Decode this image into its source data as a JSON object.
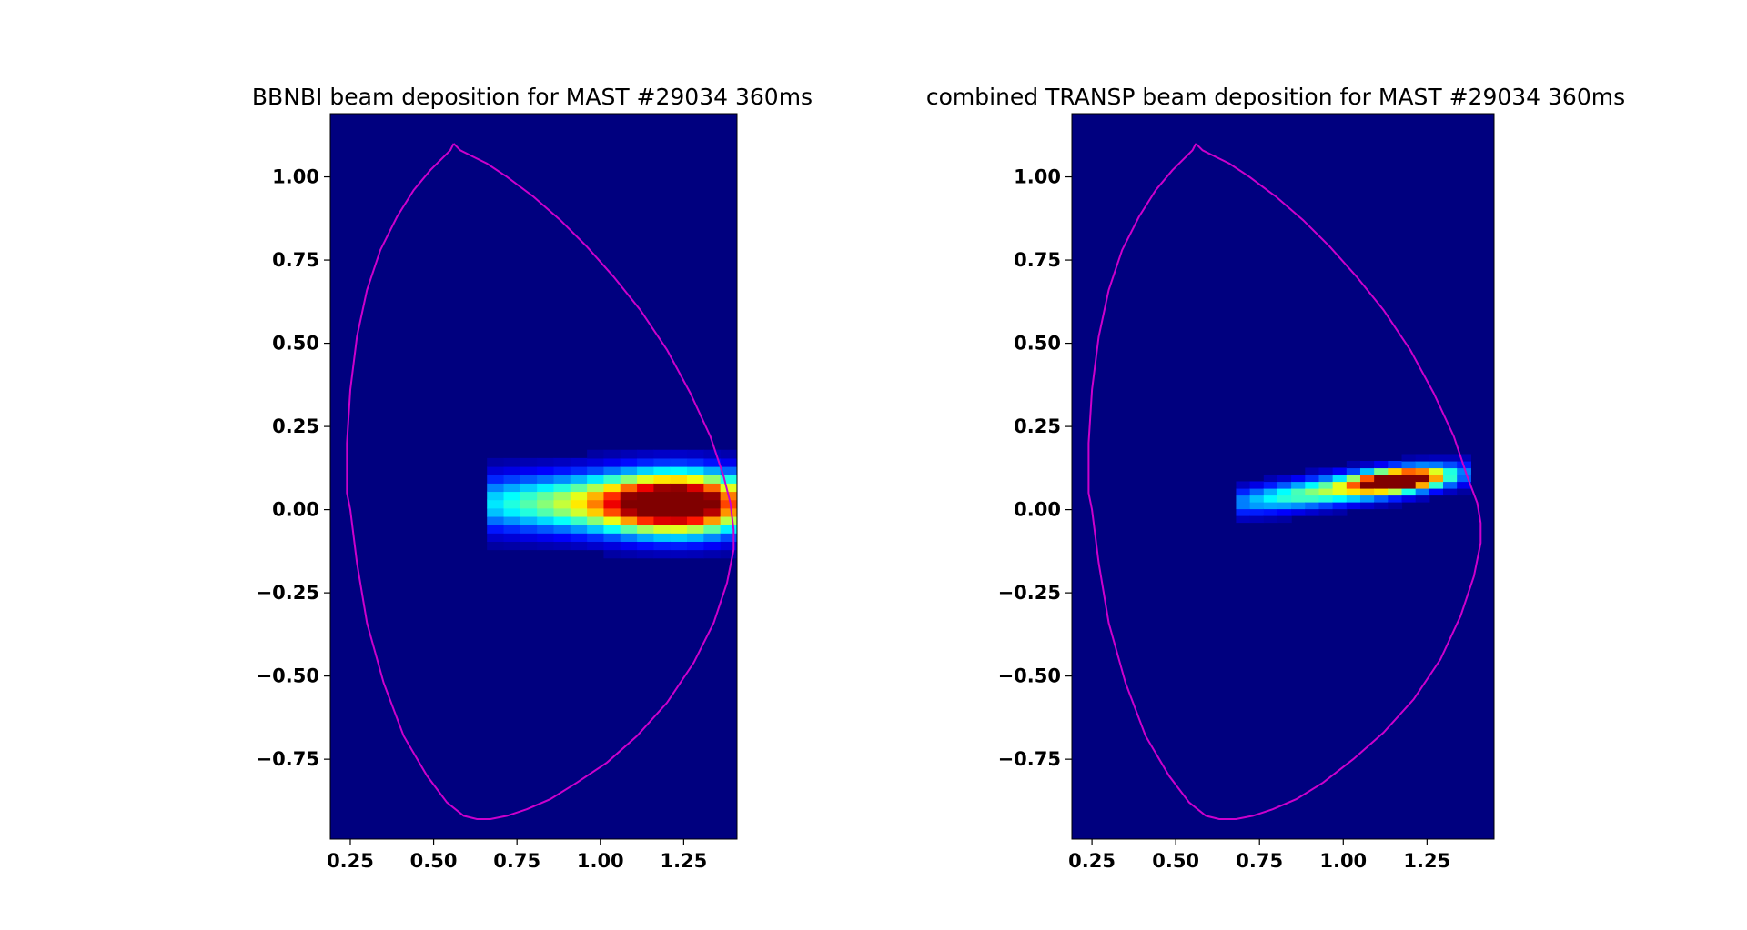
{
  "chart_data": [
    {
      "type": "heatmap",
      "title": "BBNBI beam deposition for MAST #29034 360ms",
      "xlabel": "",
      "ylabel": "",
      "xlim": [
        0.19,
        1.41
      ],
      "ylim": [
        -0.99,
        1.19
      ],
      "x_ticks": [
        0.25,
        0.5,
        0.75,
        1.0,
        1.25
      ],
      "x_tick_labels": [
        "0.25",
        "0.50",
        "0.75",
        "1.00",
        "1.25"
      ],
      "y_ticks": [
        1.0,
        0.75,
        0.5,
        0.25,
        0.0,
        -0.25,
        -0.5,
        -0.75
      ],
      "y_tick_labels": [
        "1.00",
        "0.75",
        "0.50",
        "0.25",
        "0.00",
        "−0.25",
        "−0.50",
        "−0.75"
      ],
      "colormap": "jet",
      "background_color": "#00007f",
      "grid": false,
      "deposition": {
        "description_of_fields": "Each blob is a smooth hot spot: value = amp * exp(-((x-x0)^2/(2*sx^2)) - ((y-y0)^2/(2*sy^2))), summed and clipped to [0,1]",
        "grid_x": {
          "min": 0.66,
          "max": 1.41,
          "step": 0.05
        },
        "grid_y": {
          "min": -0.22,
          "max": 0.28,
          "step": 0.025
        },
        "blobs": [
          {
            "x0": 1.24,
            "y0": 0.02,
            "sx": 0.15,
            "sy": 0.062,
            "amp": 1.0,
            "tilt": 0.0
          },
          {
            "x0": 0.95,
            "y0": 0.02,
            "sx": 0.3,
            "sy": 0.058,
            "amp": 0.52,
            "tilt": 0.0
          }
        ]
      },
      "boundary": {
        "color": "#cc00cc",
        "R": [
          0.56,
          0.58,
          0.62,
          0.66,
          0.72,
          0.8,
          0.88,
          0.96,
          1.04,
          1.12,
          1.2,
          1.27,
          1.33,
          1.37,
          1.39,
          1.4,
          1.4,
          1.38,
          1.34,
          1.28,
          1.2,
          1.11,
          1.02,
          0.93,
          0.85,
          0.78,
          0.72,
          0.67,
          0.63,
          0.59,
          0.54,
          0.48,
          0.41,
          0.35,
          0.3,
          0.27,
          0.25,
          0.24,
          0.24,
          0.25,
          0.27,
          0.3,
          0.34,
          0.39,
          0.44,
          0.49,
          0.53,
          0.55,
          0.56
        ],
        "Z": [
          1.1,
          1.08,
          1.06,
          1.04,
          1.0,
          0.94,
          0.87,
          0.79,
          0.7,
          0.6,
          0.48,
          0.35,
          0.22,
          0.1,
          0.02,
          -0.06,
          -0.12,
          -0.22,
          -0.34,
          -0.46,
          -0.58,
          -0.68,
          -0.76,
          -0.82,
          -0.87,
          -0.9,
          -0.92,
          -0.93,
          -0.93,
          -0.92,
          -0.88,
          -0.8,
          -0.68,
          -0.52,
          -0.34,
          -0.16,
          0.0,
          0.05,
          0.2,
          0.36,
          0.52,
          0.66,
          0.78,
          0.88,
          0.96,
          1.02,
          1.06,
          1.08,
          1.1
        ]
      }
    },
    {
      "type": "heatmap",
      "title": "combined TRANSP beam deposition for MAST #29034 360ms",
      "xlabel": "",
      "ylabel": "",
      "xlim": [
        0.19,
        1.45
      ],
      "ylim": [
        -0.99,
        1.19
      ],
      "x_ticks": [
        0.25,
        0.5,
        0.75,
        1.0,
        1.25
      ],
      "x_tick_labels": [
        "0.25",
        "0.50",
        "0.75",
        "1.00",
        "1.25"
      ],
      "y_ticks": [
        1.0,
        0.75,
        0.5,
        0.25,
        0.0,
        -0.25,
        -0.5,
        -0.75
      ],
      "y_tick_labels": [
        "1.00",
        "0.75",
        "0.50",
        "0.25",
        "0.00",
        "−0.25",
        "−0.50",
        "−0.75"
      ],
      "colormap": "jet",
      "background_color": "#00007f",
      "grid": false,
      "deposition": {
        "description_of_fields": "Blobs along a tilted band; tilt is dZ/dR of the band centre line",
        "grid_x": {
          "min": 0.68,
          "max": 1.36,
          "step": 0.0412
        },
        "grid_y": {
          "min": -0.12,
          "max": 0.2,
          "step": 0.0205
        },
        "blobs": [
          {
            "x0": 1.17,
            "y0": 0.09,
            "sx": 0.09,
            "sy": 0.022,
            "amp": 1.0,
            "tilt": 0.1
          },
          {
            "x0": 0.98,
            "y0": 0.06,
            "sx": 0.24,
            "sy": 0.03,
            "amp": 0.52,
            "tilt": 0.13
          }
        ]
      },
      "boundary": {
        "color": "#cc00cc",
        "R": [
          0.56,
          0.58,
          0.62,
          0.66,
          0.72,
          0.8,
          0.88,
          0.96,
          1.04,
          1.12,
          1.2,
          1.27,
          1.33,
          1.37,
          1.4,
          1.41,
          1.41,
          1.39,
          1.35,
          1.29,
          1.21,
          1.12,
          1.03,
          0.94,
          0.86,
          0.79,
          0.73,
          0.68,
          0.63,
          0.59,
          0.54,
          0.48,
          0.41,
          0.35,
          0.3,
          0.27,
          0.25,
          0.24,
          0.24,
          0.25,
          0.27,
          0.3,
          0.34,
          0.39,
          0.44,
          0.49,
          0.53,
          0.55,
          0.56
        ],
        "Z": [
          1.1,
          1.08,
          1.06,
          1.04,
          1.0,
          0.94,
          0.87,
          0.79,
          0.7,
          0.6,
          0.48,
          0.35,
          0.22,
          0.1,
          0.02,
          -0.04,
          -0.1,
          -0.2,
          -0.32,
          -0.45,
          -0.57,
          -0.67,
          -0.75,
          -0.82,
          -0.87,
          -0.9,
          -0.92,
          -0.93,
          -0.93,
          -0.92,
          -0.88,
          -0.8,
          -0.68,
          -0.52,
          -0.34,
          -0.16,
          0.0,
          0.05,
          0.2,
          0.36,
          0.52,
          0.66,
          0.78,
          0.88,
          0.96,
          1.02,
          1.06,
          1.08,
          1.1
        ]
      }
    }
  ]
}
